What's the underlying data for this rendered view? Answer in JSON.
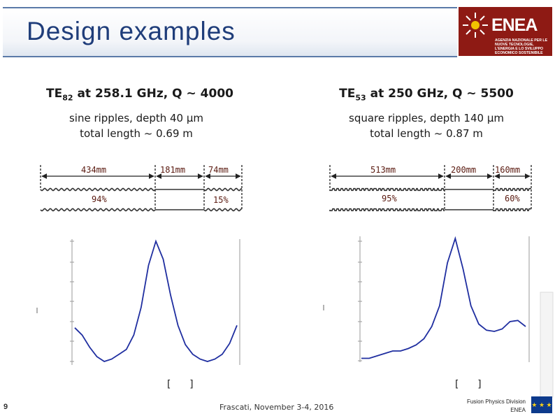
{
  "header": {
    "title": "Design examples",
    "logo_text": "ENEA",
    "logo_subtitle": "AGENZIA NAZIONALE PER LE NUOVE TECNOLOGIE, L'ENERGIA E LO SVILUPPO ECONOMICO SOSTENIBILE"
  },
  "left": {
    "mode_prefix": "TE",
    "mode_sub": "82",
    "mode_rest": " at 258.1 GHz, Q ~ 4000",
    "ripple": "sine ripples, depth 40 µm",
    "length": "total length ~ 0.69 m",
    "segments": [
      "434mm",
      "181mm",
      "74mm"
    ],
    "efficiencies": [
      "94%",
      "15%"
    ]
  },
  "right": {
    "mode_prefix": "TE",
    "mode_sub": "53",
    "mode_rest": " at 250 GHz, Q ~ 5500",
    "ripple": "square ripples, depth 140 µm",
    "length": "total length ~ 0.87 m",
    "segments": [
      "513mm",
      "200mm",
      "160mm"
    ],
    "efficiencies": [
      "95%",
      "60%"
    ]
  },
  "chart_data": [
    {
      "type": "line",
      "title": "",
      "xlabel": "",
      "ylabel": "",
      "series": [
        {
          "values": [
            0.28,
            0.22,
            0.12,
            0.04,
            0.0,
            0.02,
            0.06,
            0.1,
            0.22,
            0.45,
            0.8,
            1.0,
            0.85,
            0.55,
            0.3,
            0.14,
            0.06,
            0.02,
            0.0,
            0.02,
            0.06,
            0.15,
            0.3
          ]
        }
      ]
    },
    {
      "type": "line",
      "title": "",
      "xlabel": "",
      "ylabel": "",
      "series": [
        {
          "values": [
            0.02,
            0.02,
            0.04,
            0.06,
            0.08,
            0.08,
            0.1,
            0.13,
            0.18,
            0.28,
            0.45,
            0.8,
            1.0,
            0.75,
            0.45,
            0.3,
            0.25,
            0.24,
            0.26,
            0.32,
            0.33,
            0.28
          ]
        }
      ]
    }
  ],
  "footer": {
    "page": "9",
    "event": "Frascati, November 3-4, 2016",
    "division": "Fusion Physics Division",
    "org": "ENEA",
    "eu": "EU"
  }
}
